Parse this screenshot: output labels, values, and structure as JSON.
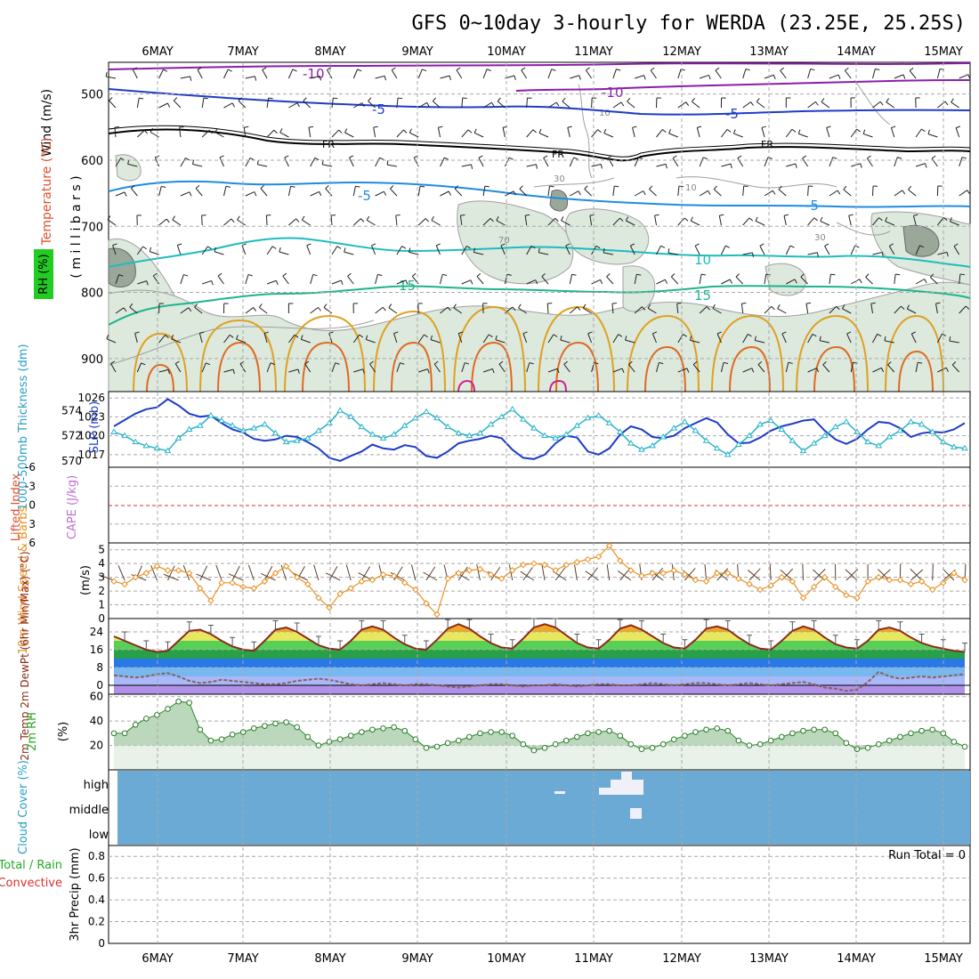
{
  "title": "GFS 0~10day 3-hourly for WERDA (23.25E, 25.25S)",
  "date_labels": [
    "6MAY",
    "7MAY",
    "8MAY",
    "9MAY",
    "10MAY",
    "11MAY",
    "12MAY",
    "13MAY",
    "14MAY",
    "15MAY"
  ],
  "colors": {
    "grid": "#a8a8a8",
    "rh_fill": "#dce9dc",
    "rh_fill_dark": "#9aa89a",
    "slp_line": "#1e3cc8",
    "thickness_line": "#28b4c8",
    "wind_speed": "#e89020",
    "temp_line": "#8b2a1a",
    "dewpt_line": "#8b6060",
    "rh_green": "#55aa55",
    "cloud_blue": "#6aaad4",
    "lifted_zero": "#d83030"
  },
  "upper_panel": {
    "labels": {
      "wind": "Wind (m/s)",
      "temperature": "Temperature (°C)",
      "millibars": "( m i l l i b a r s )",
      "rh": "RH (%)"
    },
    "pressure_ticks": [
      "500",
      "600",
      "700",
      "800",
      "900"
    ],
    "contours": [
      {
        "label": "-10",
        "level_mb": 465,
        "color": "#8a1ea8"
      },
      {
        "label": "-10",
        "level_mb": 497,
        "color": "#8a1ea8"
      },
      {
        "label": "-5",
        "level_mb": 520,
        "color": "#1e3cc8"
      },
      {
        "label": "FR",
        "level_mb": 575,
        "color": "#000000"
      },
      {
        "label": "-5",
        "level_mb": 640,
        "color": "#1e8ce0"
      },
      {
        "label": "10",
        "level_mb": 755,
        "color": "#1ebcc0"
      },
      {
        "label": "15",
        "level_mb": 800,
        "color": "#1eb48c"
      }
    ],
    "rh_contour_labels": [
      "10",
      "30",
      "70",
      "30",
      "10"
    ]
  },
  "slp_panel": {
    "labels": {
      "thickness": "1000-500mb Thickness (dm)",
      "slp": "SLP (mb)"
    },
    "left_ticks": [
      "574",
      "572",
      "570"
    ],
    "right_ticks": [
      "1026",
      "1023",
      "1020",
      "1017"
    ]
  },
  "cape_panel": {
    "labels": {
      "lifted": "Lifted Index",
      "cape": "CAPE (J/kg)"
    },
    "ticks": [
      "-6",
      "-3",
      "0",
      "3",
      "6"
    ]
  },
  "wind_panel": {
    "labels": {
      "title": "10m Wind Speed & Barbs",
      "units": "(m/s)"
    },
    "ticks": [
      "5",
      "4",
      "3",
      "2",
      "1",
      "0"
    ]
  },
  "temp_panel": {
    "labels": {
      "title": "2m Temp 2m DewPt (6hr Min/Max) (°C)"
    },
    "ticks": [
      "24",
      "16",
      "8",
      "0"
    ]
  },
  "rh_panel": {
    "labels": {
      "title": "2m RH",
      "units": "(%)"
    },
    "ticks": [
      "60",
      "40",
      "20"
    ]
  },
  "cloud_panel": {
    "labels": {
      "title": "Cloud Cover (%)"
    },
    "levels": [
      "high",
      "middle",
      "low"
    ]
  },
  "precip_panel": {
    "labels": {
      "title": "3hr Precip (mm)",
      "total": "Total / Rain",
      "convective": "Convective",
      "run_total": "Run Total = 0"
    },
    "ticks": [
      "0.8",
      "0.6",
      "0.4",
      "0.2",
      "0"
    ]
  },
  "chart_data": [
    {
      "type": "line",
      "title": "SLP (mb) / 1000-500mb Thickness (dm)",
      "x_unit": "3-hourly steps from 5 May 12Z",
      "series": [
        {
          "name": "SLP (mb)",
          "values": [
            1021.5,
            1022.5,
            1023.5,
            1024.2,
            1024.5,
            1025.8,
            1024.8,
            1023.5,
            1023.0,
            1023.2,
            1022.0,
            1021.0,
            1020.5,
            1019.5,
            1019.2,
            1019.4,
            1020.0,
            1019.8,
            1019.0,
            1018.0,
            1016.5,
            1016.0,
            1016.8,
            1017.5,
            1018.6,
            1018.0,
            1017.8,
            1018.5,
            1018.2,
            1016.8,
            1016.5,
            1017.5,
            1018.8,
            1019.2,
            1019.5,
            1020.0,
            1019.6,
            1017.8,
            1016.5,
            1016.3,
            1017.0,
            1018.8,
            1020.0,
            1019.7,
            1017.5,
            1017.0,
            1018.0,
            1020.2,
            1021.5,
            1021.0,
            1019.8,
            1019.6,
            1020.0,
            1021.2,
            1022.0,
            1022.8,
            1022.1,
            1020.2,
            1018.8,
            1018.9,
            1019.7,
            1020.8,
            1021.5,
            1021.9,
            1022.4,
            1022.6,
            1020.8,
            1019.4,
            1018.7,
            1019.5,
            1021.0,
            1022.2,
            1022.0,
            1021.2,
            1019.8,
            1020.4,
            1020.6,
            1020.5,
            1021.0,
            1022.0
          ]
        },
        {
          "name": "1000-500mb Thickness (dm)",
          "values": [
            572.3,
            572.0,
            571.5,
            571.2,
            571.0,
            570.8,
            571.8,
            572.5,
            572.8,
            573.6,
            573.2,
            572.8,
            572.4,
            572.6,
            572.9,
            572.2,
            571.5,
            571.6,
            571.8,
            572.4,
            573.0,
            574.0,
            573.5,
            572.7,
            572.1,
            571.8,
            572.1,
            572.8,
            573.4,
            573.9,
            573.4,
            572.7,
            572.2,
            572.0,
            572.2,
            572.9,
            573.5,
            574.1,
            573.3,
            572.6,
            572.0,
            571.8,
            572.1,
            572.8,
            573.4,
            573.6,
            573.0,
            572.3,
            571.4,
            570.9,
            571.2,
            571.9,
            572.6,
            573.1,
            572.4,
            571.6,
            571.0,
            570.5,
            571.3,
            572.0,
            572.9,
            573.2,
            572.5,
            571.6,
            570.8,
            571.4,
            572.0,
            572.7,
            573.1,
            572.3,
            571.5,
            571.2,
            571.9,
            572.4,
            573.1,
            572.9,
            572.3,
            571.5,
            571.1,
            571.0
          ]
        }
      ],
      "ylim_left": [
        569.5,
        575.5
      ],
      "ylim_right": [
        1015,
        1027
      ]
    },
    {
      "type": "line",
      "title": "10m Wind Speed (m/s)",
      "series": [
        {
          "name": "10m Wind Speed",
          "values": [
            2.7,
            2.5,
            3.0,
            3.3,
            3.8,
            3.5,
            3.5,
            3.3,
            2.2,
            1.3,
            2.6,
            2.6,
            2.3,
            2.2,
            2.7,
            3.3,
            3.8,
            3.0,
            2.5,
            1.5,
            0.8,
            1.8,
            2.2,
            2.7,
            2.8,
            3.2,
            3.1,
            2.6,
            2.1,
            1.1,
            0.3,
            2.9,
            3.3,
            3.5,
            3.6,
            3.2,
            2.9,
            3.5,
            3.9,
            4.0,
            3.9,
            3.5,
            3.9,
            4.1,
            4.3,
            4.5,
            5.3,
            4.2,
            3.5,
            3.1,
            3.3,
            3.3,
            3.5,
            3.2,
            2.8,
            2.7,
            3.3,
            3.3,
            2.9,
            2.5,
            2.1,
            2.4,
            3.0,
            2.7,
            1.5,
            2.3,
            3.0,
            2.3,
            1.7,
            1.5,
            2.7,
            3.0,
            2.8,
            2.8,
            2.5,
            2.7,
            2.1,
            2.6,
            3.3,
            2.8
          ]
        }
      ],
      "ylim": [
        0,
        5.5
      ]
    },
    {
      "type": "area",
      "title": "2m Temp / 2m DewPt (°C)",
      "series": [
        {
          "name": "2m Temp",
          "values": [
            22.0,
            20.0,
            18.0,
            16.0,
            15.0,
            15.5,
            20.0,
            24.5,
            25.0,
            23.0,
            20.0,
            17.5,
            16.0,
            15.5,
            20.0,
            25.0,
            26.0,
            24.0,
            21.0,
            18.0,
            16.5,
            16.0,
            20.0,
            25.0,
            26.5,
            25.0,
            21.5,
            18.5,
            16.5,
            16.0,
            20.5,
            25.5,
            27.5,
            25.5,
            22.0,
            19.0,
            17.0,
            16.5,
            21.0,
            26.0,
            27.5,
            26.0,
            22.5,
            19.0,
            17.0,
            16.5,
            20.5,
            25.5,
            27.0,
            25.0,
            22.0,
            19.0,
            17.0,
            16.5,
            20.5,
            25.5,
            26.5,
            25.0,
            21.5,
            18.5,
            16.5,
            16.0,
            20.0,
            24.5,
            26.5,
            25.0,
            21.5,
            18.5,
            17.0,
            16.5,
            20.0,
            25.0,
            26.0,
            24.5,
            21.5,
            19.0,
            17.5,
            16.5,
            15.5,
            15.0
          ]
        },
        {
          "name": "2m DewPt",
          "values": [
            4.5,
            4.0,
            3.5,
            4.0,
            5.0,
            5.5,
            4.0,
            2.0,
            1.0,
            1.5,
            2.5,
            2.0,
            1.5,
            1.0,
            0.5,
            0.5,
            1.0,
            2.0,
            2.5,
            3.0,
            2.5,
            1.5,
            0.5,
            0.0,
            0.5,
            1.0,
            0.5,
            0.0,
            0.5,
            0.5,
            0.0,
            -0.5,
            -1.0,
            -0.5,
            0.0,
            0.5,
            0.5,
            0.0,
            -0.5,
            0.0,
            0.0,
            0.5,
            0.0,
            -0.5,
            0.0,
            0.5,
            0.5,
            0.0,
            0.0,
            0.5,
            1.0,
            0.5,
            0.0,
            0.5,
            1.0,
            1.0,
            0.5,
            0.0,
            0.5,
            1.0,
            0.5,
            0.0,
            0.5,
            1.0,
            1.5,
            0.5,
            -1.0,
            -1.5,
            -2.5,
            -2.0,
            1.5,
            6.0,
            4.0,
            3.0,
            3.5,
            4.0,
            3.5,
            4.0,
            4.5,
            5.0
          ]
        }
      ],
      "ylim": [
        -4,
        30
      ]
    },
    {
      "type": "area",
      "title": "2m RH (%)",
      "series": [
        {
          "name": "2m RH",
          "values": [
            30,
            30,
            37,
            42,
            45,
            50,
            56,
            55,
            33,
            24,
            25,
            29,
            31,
            34,
            36,
            38,
            39,
            35,
            27,
            20,
            23,
            25,
            28,
            31,
            33,
            34,
            35,
            32,
            25,
            18,
            19,
            22,
            24,
            27,
            30,
            31,
            31,
            28,
            21,
            16,
            18,
            21,
            24,
            27,
            30,
            31,
            32,
            28,
            21,
            17,
            18,
            21,
            25,
            28,
            31,
            33,
            34,
            32,
            24,
            20,
            21,
            24,
            27,
            30,
            32,
            33,
            33,
            30,
            22,
            17,
            18,
            21,
            24,
            27,
            30,
            32,
            33,
            30,
            23,
            19
          ]
        }
      ],
      "ylim": [
        0,
        62
      ]
    }
  ]
}
